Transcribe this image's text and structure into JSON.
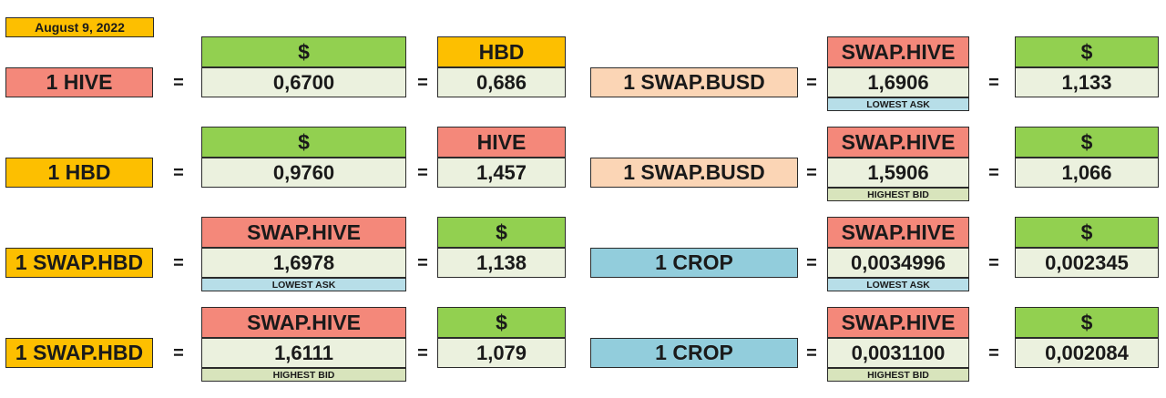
{
  "date": "August 9, 2022",
  "equals": "=",
  "rows": [
    {
      "left": {
        "label": "1 HIVE",
        "cur1": "$",
        "val1": "0,6700",
        "cur2": "HBD",
        "val2": "0,686"
      },
      "right": {
        "label": "1 SWAP.BUSD",
        "cur1": "SWAP.HIVE",
        "val1": "1,6906",
        "note": "LOWEST ASK",
        "cur2": "$",
        "val2": "1,133"
      }
    },
    {
      "left": {
        "label": "1 HBD",
        "cur1": "$",
        "val1": "0,9760",
        "cur2": "HIVE",
        "val2": "1,457"
      },
      "right": {
        "label": "1 SWAP.BUSD",
        "cur1": "SWAP.HIVE",
        "val1": "1,5906",
        "note": "HIGHEST BID",
        "cur2": "$",
        "val2": "1,066"
      }
    },
    {
      "left": {
        "label": "1 SWAP.HBD",
        "cur1": "SWAP.HIVE",
        "val1": "1,6978",
        "note": "LOWEST ASK",
        "cur2": "$",
        "val2": "1,138"
      },
      "right": {
        "label": "1 CROP",
        "cur1": "SWAP.HIVE",
        "val1": "0,0034996",
        "note": "LOWEST ASK",
        "cur2": "$",
        "val2": "0,002345"
      }
    },
    {
      "left": {
        "label": "1 SWAP.HBD",
        "cur1": "SWAP.HIVE",
        "val1": "1,6111",
        "note": "HIGHEST BID",
        "cur2": "$",
        "val2": "1,079"
      },
      "right": {
        "label": "1 CROP",
        "cur1": "SWAP.HIVE",
        "val1": "0,0031100",
        "note": "HIGHEST BID",
        "cur2": "$",
        "val2": "0,002084"
      }
    }
  ],
  "colors": {
    "salmon": "#f4887a",
    "peach": "#fbd5b5",
    "orange": "#fdbf00",
    "blue": "#92cddc",
    "green": "#92d050",
    "pale_green": "#ebf1de",
    "lowest_ask": "#b7dee8",
    "highest_bid": "#d8e4bc"
  }
}
